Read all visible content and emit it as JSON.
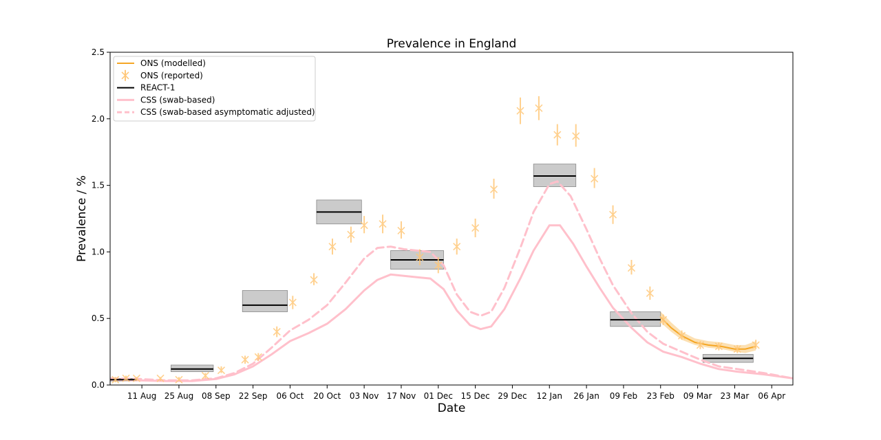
{
  "chart_data": {
    "type": "line",
    "title": "Prevalence in England",
    "xlabel": "Date",
    "ylabel": "Prevalence / %",
    "x_axis": "date",
    "xlim": [
      "2020-07-30",
      "2021-04-14"
    ],
    "ylim": [
      0,
      2.5
    ],
    "x_ticks": [
      {
        "date": "2020-08-11",
        "label": "11 Aug"
      },
      {
        "date": "2020-08-25",
        "label": "25 Aug"
      },
      {
        "date": "2020-09-08",
        "label": "08 Sep"
      },
      {
        "date": "2020-09-22",
        "label": "22 Sep"
      },
      {
        "date": "2020-10-06",
        "label": "06 Oct"
      },
      {
        "date": "2020-10-20",
        "label": "20 Oct"
      },
      {
        "date": "2020-11-03",
        "label": "03 Nov"
      },
      {
        "date": "2020-11-17",
        "label": "17 Nov"
      },
      {
        "date": "2020-12-01",
        "label": "01 Dec"
      },
      {
        "date": "2020-12-15",
        "label": "15 Dec"
      },
      {
        "date": "2020-12-29",
        "label": "29 Dec"
      },
      {
        "date": "2021-01-12",
        "label": "12 Jan"
      },
      {
        "date": "2021-01-26",
        "label": "26 Jan"
      },
      {
        "date": "2021-02-09",
        "label": "09 Feb"
      },
      {
        "date": "2021-02-23",
        "label": "23 Feb"
      },
      {
        "date": "2021-03-09",
        "label": "09 Mar"
      },
      {
        "date": "2021-03-23",
        "label": "23 Mar"
      },
      {
        "date": "2021-04-06",
        "label": "06 Apr"
      }
    ],
    "y_ticks": [
      "0.0",
      "0.5",
      "1.0",
      "1.5",
      "2.0",
      "2.5"
    ],
    "grid": false,
    "legend_position": "top-left",
    "legend": [
      {
        "label": "ONS (modelled)",
        "style": "line",
        "color": "#f5a623"
      },
      {
        "label": "ONS (reported)",
        "style": "marker",
        "color": "#ffc87a"
      },
      {
        "label": "REACT-1",
        "style": "line",
        "color": "#000000"
      },
      {
        "label": "CSS (swab-based)",
        "style": "line",
        "color": "#ffc0cb"
      },
      {
        "label": "CSS (swab-based asymptomatic adjusted)",
        "style": "dashed",
        "color": "#ffc0cb"
      }
    ],
    "series": [
      {
        "name": "ONS (reported)",
        "kind": "errorbar-points",
        "color": "#ffc87a",
        "points": [
          {
            "x": "2020-08-01",
            "y": 0.04,
            "lo": 0.02,
            "hi": 0.06
          },
          {
            "x": "2020-08-05",
            "y": 0.05,
            "lo": 0.03,
            "hi": 0.07
          },
          {
            "x": "2020-08-09",
            "y": 0.05,
            "lo": 0.03,
            "hi": 0.06
          },
          {
            "x": "2020-08-18",
            "y": 0.05,
            "lo": 0.03,
            "hi": 0.06
          },
          {
            "x": "2020-08-25",
            "y": 0.04,
            "lo": 0.03,
            "hi": 0.06
          },
          {
            "x": "2020-09-04",
            "y": 0.07,
            "lo": 0.05,
            "hi": 0.09
          },
          {
            "x": "2020-09-10",
            "y": 0.11,
            "lo": 0.09,
            "hi": 0.14
          },
          {
            "x": "2020-09-19",
            "y": 0.19,
            "lo": 0.16,
            "hi": 0.22
          },
          {
            "x": "2020-09-24",
            "y": 0.21,
            "lo": 0.18,
            "hi": 0.24
          },
          {
            "x": "2020-10-01",
            "y": 0.4,
            "lo": 0.36,
            "hi": 0.44
          },
          {
            "x": "2020-10-07",
            "y": 0.62,
            "lo": 0.57,
            "hi": 0.67
          },
          {
            "x": "2020-10-15",
            "y": 0.79,
            "lo": 0.75,
            "hi": 0.84
          },
          {
            "x": "2020-10-22",
            "y": 1.04,
            "lo": 0.98,
            "hi": 1.1
          },
          {
            "x": "2020-10-29",
            "y": 1.13,
            "lo": 1.07,
            "hi": 1.19
          },
          {
            "x": "2020-11-03",
            "y": 1.2,
            "lo": 1.14,
            "hi": 1.27
          },
          {
            "x": "2020-11-10",
            "y": 1.21,
            "lo": 1.14,
            "hi": 1.28
          },
          {
            "x": "2020-11-17",
            "y": 1.16,
            "lo": 1.1,
            "hi": 1.23
          },
          {
            "x": "2020-11-24",
            "y": 0.96,
            "lo": 0.9,
            "hi": 1.02
          },
          {
            "x": "2020-12-01",
            "y": 0.9,
            "lo": 0.84,
            "hi": 0.96
          },
          {
            "x": "2020-12-08",
            "y": 1.04,
            "lo": 0.98,
            "hi": 1.1
          },
          {
            "x": "2020-12-15",
            "y": 1.18,
            "lo": 1.11,
            "hi": 1.25
          },
          {
            "x": "2020-12-22",
            "y": 1.47,
            "lo": 1.4,
            "hi": 1.55
          },
          {
            "x": "2021-01-01",
            "y": 2.06,
            "lo": 1.96,
            "hi": 2.16
          },
          {
            "x": "2021-01-08",
            "y": 2.08,
            "lo": 1.99,
            "hi": 2.17
          },
          {
            "x": "2021-01-15",
            "y": 1.88,
            "lo": 1.8,
            "hi": 1.96
          },
          {
            "x": "2021-01-22",
            "y": 1.87,
            "lo": 1.79,
            "hi": 1.96
          },
          {
            "x": "2021-01-29",
            "y": 1.55,
            "lo": 1.48,
            "hi": 1.63
          },
          {
            "x": "2021-02-05",
            "y": 1.28,
            "lo": 1.21,
            "hi": 1.35
          },
          {
            "x": "2021-02-12",
            "y": 0.88,
            "lo": 0.83,
            "hi": 0.94
          },
          {
            "x": "2021-02-19",
            "y": 0.69,
            "lo": 0.64,
            "hi": 0.74
          },
          {
            "x": "2021-02-24",
            "y": 0.49,
            "lo": 0.45,
            "hi": 0.53
          },
          {
            "x": "2021-03-03",
            "y": 0.37,
            "lo": 0.34,
            "hi": 0.41
          },
          {
            "x": "2021-03-10",
            "y": 0.3,
            "lo": 0.27,
            "hi": 0.33
          },
          {
            "x": "2021-03-17",
            "y": 0.29,
            "lo": 0.26,
            "hi": 0.32
          },
          {
            "x": "2021-03-24",
            "y": 0.27,
            "lo": 0.24,
            "hi": 0.3
          },
          {
            "x": "2021-03-31",
            "y": 0.3,
            "lo": 0.27,
            "hi": 0.34
          }
        ]
      },
      {
        "name": "CSS (swab-based)",
        "kind": "line",
        "color": "#ffc0cb",
        "points": [
          [
            "2020-07-30",
            0.04
          ],
          [
            "2020-08-10",
            0.035
          ],
          [
            "2020-08-20",
            0.03
          ],
          [
            "2020-08-30",
            0.03
          ],
          [
            "2020-09-08",
            0.045
          ],
          [
            "2020-09-15",
            0.08
          ],
          [
            "2020-09-22",
            0.14
          ],
          [
            "2020-09-29",
            0.23
          ],
          [
            "2020-10-06",
            0.33
          ],
          [
            "2020-10-13",
            0.39
          ],
          [
            "2020-10-20",
            0.46
          ],
          [
            "2020-10-27",
            0.57
          ],
          [
            "2020-11-03",
            0.71
          ],
          [
            "2020-11-08",
            0.79
          ],
          [
            "2020-11-13",
            0.83
          ],
          [
            "2020-11-18",
            0.82
          ],
          [
            "2020-11-23",
            0.81
          ],
          [
            "2020-11-28",
            0.8
          ],
          [
            "2020-12-03",
            0.72
          ],
          [
            "2020-12-08",
            0.56
          ],
          [
            "2020-12-13",
            0.45
          ],
          [
            "2020-12-17",
            0.42
          ],
          [
            "2020-12-21",
            0.44
          ],
          [
            "2020-12-26",
            0.57
          ],
          [
            "2021-01-01",
            0.8
          ],
          [
            "2021-01-06",
            1.01
          ],
          [
            "2021-01-12",
            1.2
          ],
          [
            "2021-01-16",
            1.2
          ],
          [
            "2021-01-21",
            1.06
          ],
          [
            "2021-01-26",
            0.89
          ],
          [
            "2021-01-31",
            0.73
          ],
          [
            "2021-02-05",
            0.58
          ],
          [
            "2021-02-12",
            0.43
          ],
          [
            "2021-02-18",
            0.32
          ],
          [
            "2021-02-24",
            0.25
          ],
          [
            "2021-03-03",
            0.21
          ],
          [
            "2021-03-10",
            0.16
          ],
          [
            "2021-03-17",
            0.12
          ],
          [
            "2021-03-24",
            0.1
          ],
          [
            "2021-04-03",
            0.08
          ],
          [
            "2021-04-14",
            0.05
          ]
        ]
      },
      {
        "name": "CSS (swab-based asymptomatic adjusted)",
        "kind": "dashed",
        "color": "#ffc0cb",
        "points": [
          [
            "2020-07-30",
            0.05
          ],
          [
            "2020-08-10",
            0.045
          ],
          [
            "2020-08-20",
            0.035
          ],
          [
            "2020-08-30",
            0.035
          ],
          [
            "2020-09-08",
            0.05
          ],
          [
            "2020-09-15",
            0.09
          ],
          [
            "2020-09-22",
            0.16
          ],
          [
            "2020-09-29",
            0.28
          ],
          [
            "2020-10-06",
            0.41
          ],
          [
            "2020-10-13",
            0.49
          ],
          [
            "2020-10-20",
            0.6
          ],
          [
            "2020-10-27",
            0.77
          ],
          [
            "2020-11-03",
            0.95
          ],
          [
            "2020-11-08",
            1.03
          ],
          [
            "2020-11-13",
            1.04
          ],
          [
            "2020-11-18",
            1.02
          ],
          [
            "2020-11-23",
            1.01
          ],
          [
            "2020-11-28",
            1.0
          ],
          [
            "2020-12-03",
            0.9
          ],
          [
            "2020-12-08",
            0.68
          ],
          [
            "2020-12-13",
            0.55
          ],
          [
            "2020-12-17",
            0.52
          ],
          [
            "2020-12-21",
            0.55
          ],
          [
            "2020-12-26",
            0.73
          ],
          [
            "2021-01-01",
            1.03
          ],
          [
            "2021-01-06",
            1.3
          ],
          [
            "2021-01-12",
            1.51
          ],
          [
            "2021-01-15",
            1.53
          ],
          [
            "2021-01-20",
            1.42
          ],
          [
            "2021-01-26",
            1.17
          ],
          [
            "2021-01-31",
            0.95
          ],
          [
            "2021-02-05",
            0.75
          ],
          [
            "2021-02-12",
            0.54
          ],
          [
            "2021-02-18",
            0.4
          ],
          [
            "2021-02-24",
            0.31
          ],
          [
            "2021-03-03",
            0.25
          ],
          [
            "2021-03-10",
            0.19
          ],
          [
            "2021-03-17",
            0.14
          ],
          [
            "2021-03-24",
            0.12
          ],
          [
            "2021-04-03",
            0.09
          ],
          [
            "2021-04-14",
            0.05
          ]
        ]
      },
      {
        "name": "ONS (modelled)",
        "kind": "band-line",
        "color": "#f5a623",
        "points": [
          {
            "x": "2021-02-23",
            "y": 0.51,
            "lo": 0.47,
            "hi": 0.55
          },
          {
            "x": "2021-02-27",
            "y": 0.43,
            "lo": 0.4,
            "hi": 0.47
          },
          {
            "x": "2021-03-03",
            "y": 0.37,
            "lo": 0.34,
            "hi": 0.4
          },
          {
            "x": "2021-03-08",
            "y": 0.32,
            "lo": 0.3,
            "hi": 0.35
          },
          {
            "x": "2021-03-13",
            "y": 0.3,
            "lo": 0.28,
            "hi": 0.33
          },
          {
            "x": "2021-03-18",
            "y": 0.29,
            "lo": 0.27,
            "hi": 0.32
          },
          {
            "x": "2021-03-23",
            "y": 0.27,
            "lo": 0.25,
            "hi": 0.3
          },
          {
            "x": "2021-03-27",
            "y": 0.27,
            "lo": 0.24,
            "hi": 0.3
          },
          {
            "x": "2021-03-31",
            "y": 0.29,
            "lo": 0.26,
            "hi": 0.33
          }
        ]
      },
      {
        "name": "REACT-1",
        "kind": "interval-boxes",
        "color": "#000000",
        "box_color": "#c8c8c8",
        "intervals": [
          {
            "x0": "2020-07-30",
            "x1": "2020-08-09",
            "y": 0.04,
            "lo": 0.03,
            "hi": 0.05
          },
          {
            "x0": "2020-08-22",
            "x1": "2020-09-07",
            "y": 0.12,
            "lo": 0.1,
            "hi": 0.15
          },
          {
            "x0": "2020-09-18",
            "x1": "2020-10-05",
            "y": 0.6,
            "lo": 0.55,
            "hi": 0.71
          },
          {
            "x0": "2020-10-16",
            "x1": "2020-11-02",
            "y": 1.3,
            "lo": 1.21,
            "hi": 1.39
          },
          {
            "x0": "2020-11-13",
            "x1": "2020-12-03",
            "y": 0.94,
            "lo": 0.87,
            "hi": 1.01
          },
          {
            "x0": "2021-01-06",
            "x1": "2021-01-22",
            "y": 1.57,
            "lo": 1.49,
            "hi": 1.66
          },
          {
            "x0": "2021-02-04",
            "x1": "2021-02-23",
            "y": 0.49,
            "lo": 0.44,
            "hi": 0.55
          },
          {
            "x0": "2021-03-11",
            "x1": "2021-03-30",
            "y": 0.2,
            "lo": 0.17,
            "hi": 0.23
          }
        ]
      }
    ]
  }
}
